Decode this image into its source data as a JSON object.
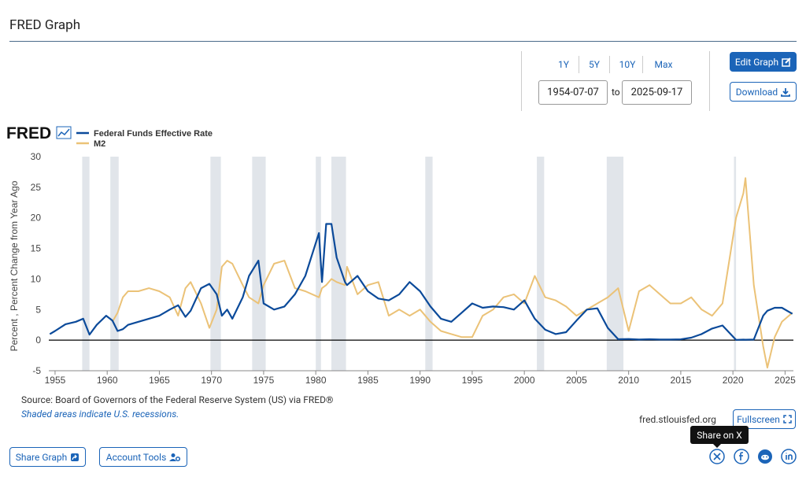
{
  "header": {
    "title": "FRED Graph"
  },
  "controls": {
    "range_buttons": [
      "1Y",
      "5Y",
      "10Y",
      "Max"
    ],
    "start_date": "1954-07-07",
    "to": "to",
    "end_date": "2025-09-17",
    "edit_graph": "Edit Graph",
    "download": "Download"
  },
  "chart_logo": "FRED",
  "chart_data": {
    "type": "line",
    "y_label": "Percent , Percent Change from Year Ago",
    "x": [
      1954.5,
      1955,
      1956,
      1957,
      1957.7,
      1958.3,
      1959,
      1959.9,
      1960.5,
      1961,
      1961.5,
      1962,
      1963,
      1964,
      1965,
      1966,
      1966.8,
      1967.5,
      1968,
      1969,
      1969.8,
      1970.5,
      1971,
      1971.5,
      1972,
      1973,
      1973.6,
      1974.5,
      1975,
      1976,
      1977,
      1978,
      1979,
      1980.3,
      1980.6,
      1981,
      1981.5,
      1982,
      1982.8,
      1983,
      1984,
      1985,
      1986,
      1987,
      1988,
      1989,
      1990,
      1991,
      1992,
      1993,
      1994,
      1995,
      1996,
      1997,
      1998,
      1999,
      2000,
      2001,
      2002,
      2003,
      2004,
      2005,
      2006,
      2007,
      2008,
      2009,
      2010,
      2011,
      2012,
      2013,
      2014,
      2015,
      2016,
      2017,
      2018,
      2019,
      2020.3,
      2021,
      2021.2,
      2022,
      2022.9,
      2023.3,
      2024,
      2024.7,
      2025.7
    ],
    "series": [
      {
        "name": "Federal Funds Effective Rate",
        "color": "#0b4a9a",
        "values": [
          1.0,
          1.5,
          2.6,
          3.0,
          3.5,
          0.9,
          2.5,
          4.0,
          3.2,
          1.5,
          1.8,
          2.5,
          3.0,
          3.5,
          4.0,
          5.0,
          5.7,
          3.8,
          4.8,
          8.5,
          9.2,
          7.5,
          4.0,
          5.0,
          3.5,
          7.0,
          10.5,
          13.0,
          6.0,
          5.0,
          5.5,
          7.5,
          10.5,
          17.5,
          9.5,
          19.0,
          19.0,
          13.5,
          9.5,
          9.0,
          10.5,
          8.0,
          6.8,
          6.5,
          7.5,
          9.5,
          8.0,
          5.5,
          3.5,
          3.0,
          4.5,
          6.0,
          5.3,
          5.5,
          5.4,
          5.0,
          6.5,
          3.5,
          1.7,
          1.0,
          1.3,
          3.2,
          5.0,
          5.2,
          2.0,
          0.15,
          0.18,
          0.1,
          0.15,
          0.1,
          0.1,
          0.13,
          0.4,
          1.0,
          1.9,
          2.4,
          0.05,
          0.08,
          0.07,
          0.1,
          4.0,
          4.8,
          5.3,
          5.3,
          4.3
        ]
      },
      {
        "name": "M2",
        "color": "#ebc277",
        "values": [
          null,
          null,
          null,
          null,
          null,
          null,
          null,
          null,
          3.0,
          4.5,
          7.0,
          8.0,
          8.0,
          8.5,
          8.0,
          7.0,
          4.0,
          8.5,
          9.5,
          6.0,
          2.0,
          5.0,
          12.0,
          13.0,
          12.5,
          9.0,
          7.0,
          6.0,
          9.0,
          12.5,
          13.0,
          8.5,
          8.0,
          7.0,
          8.5,
          9.0,
          10.0,
          9.5,
          9.0,
          12.0,
          7.5,
          9.0,
          9.5,
          4.0,
          5.0,
          4.0,
          5.0,
          3.0,
          1.5,
          1.0,
          0.5,
          0.5,
          4.0,
          5.0,
          7.0,
          7.5,
          6.0,
          10.5,
          7.0,
          6.5,
          5.5,
          4.0,
          5.0,
          6.0,
          7.0,
          8.5,
          1.5,
          8.0,
          9.0,
          7.5,
          6.0,
          6.0,
          7.0,
          5.0,
          4.0,
          6.0,
          20.0,
          24.0,
          26.5,
          9.0,
          -1.0,
          -4.5,
          0.5,
          3.0,
          4.5
        ]
      }
    ],
    "recessions": [
      [
        1957.6,
        1958.3
      ],
      [
        1960.3,
        1961.1
      ],
      [
        1969.9,
        1970.9
      ],
      [
        1973.9,
        1975.2
      ],
      [
        1980.0,
        1980.5
      ],
      [
        1981.5,
        1982.9
      ],
      [
        1990.5,
        1991.2
      ],
      [
        2001.2,
        2001.9
      ],
      [
        2007.9,
        2009.5
      ],
      [
        2020.1,
        2020.3
      ]
    ],
    "recession_color": "#e1e5ea",
    "xlim": [
      1954.4,
      2025.8
    ],
    "xticks": [
      1955,
      1960,
      1965,
      1970,
      1975,
      1980,
      1985,
      1990,
      1995,
      2000,
      2005,
      2010,
      2015,
      2020,
      2025
    ],
    "ylim": [
      -5,
      30
    ],
    "yticks": [
      -5,
      0,
      5,
      10,
      15,
      20,
      25,
      30
    ],
    "grid": false
  },
  "footer": {
    "source": "Source: Board of Governors of the Federal Reserve System (US) via FRED®",
    "note": "Shaded areas indicate U.S. recessions.",
    "site": "fred.stlouisfed.org",
    "fullscreen": "Fullscreen",
    "tooltip": "Share on X",
    "share_graph": "Share Graph",
    "account_tools": "Account Tools"
  }
}
